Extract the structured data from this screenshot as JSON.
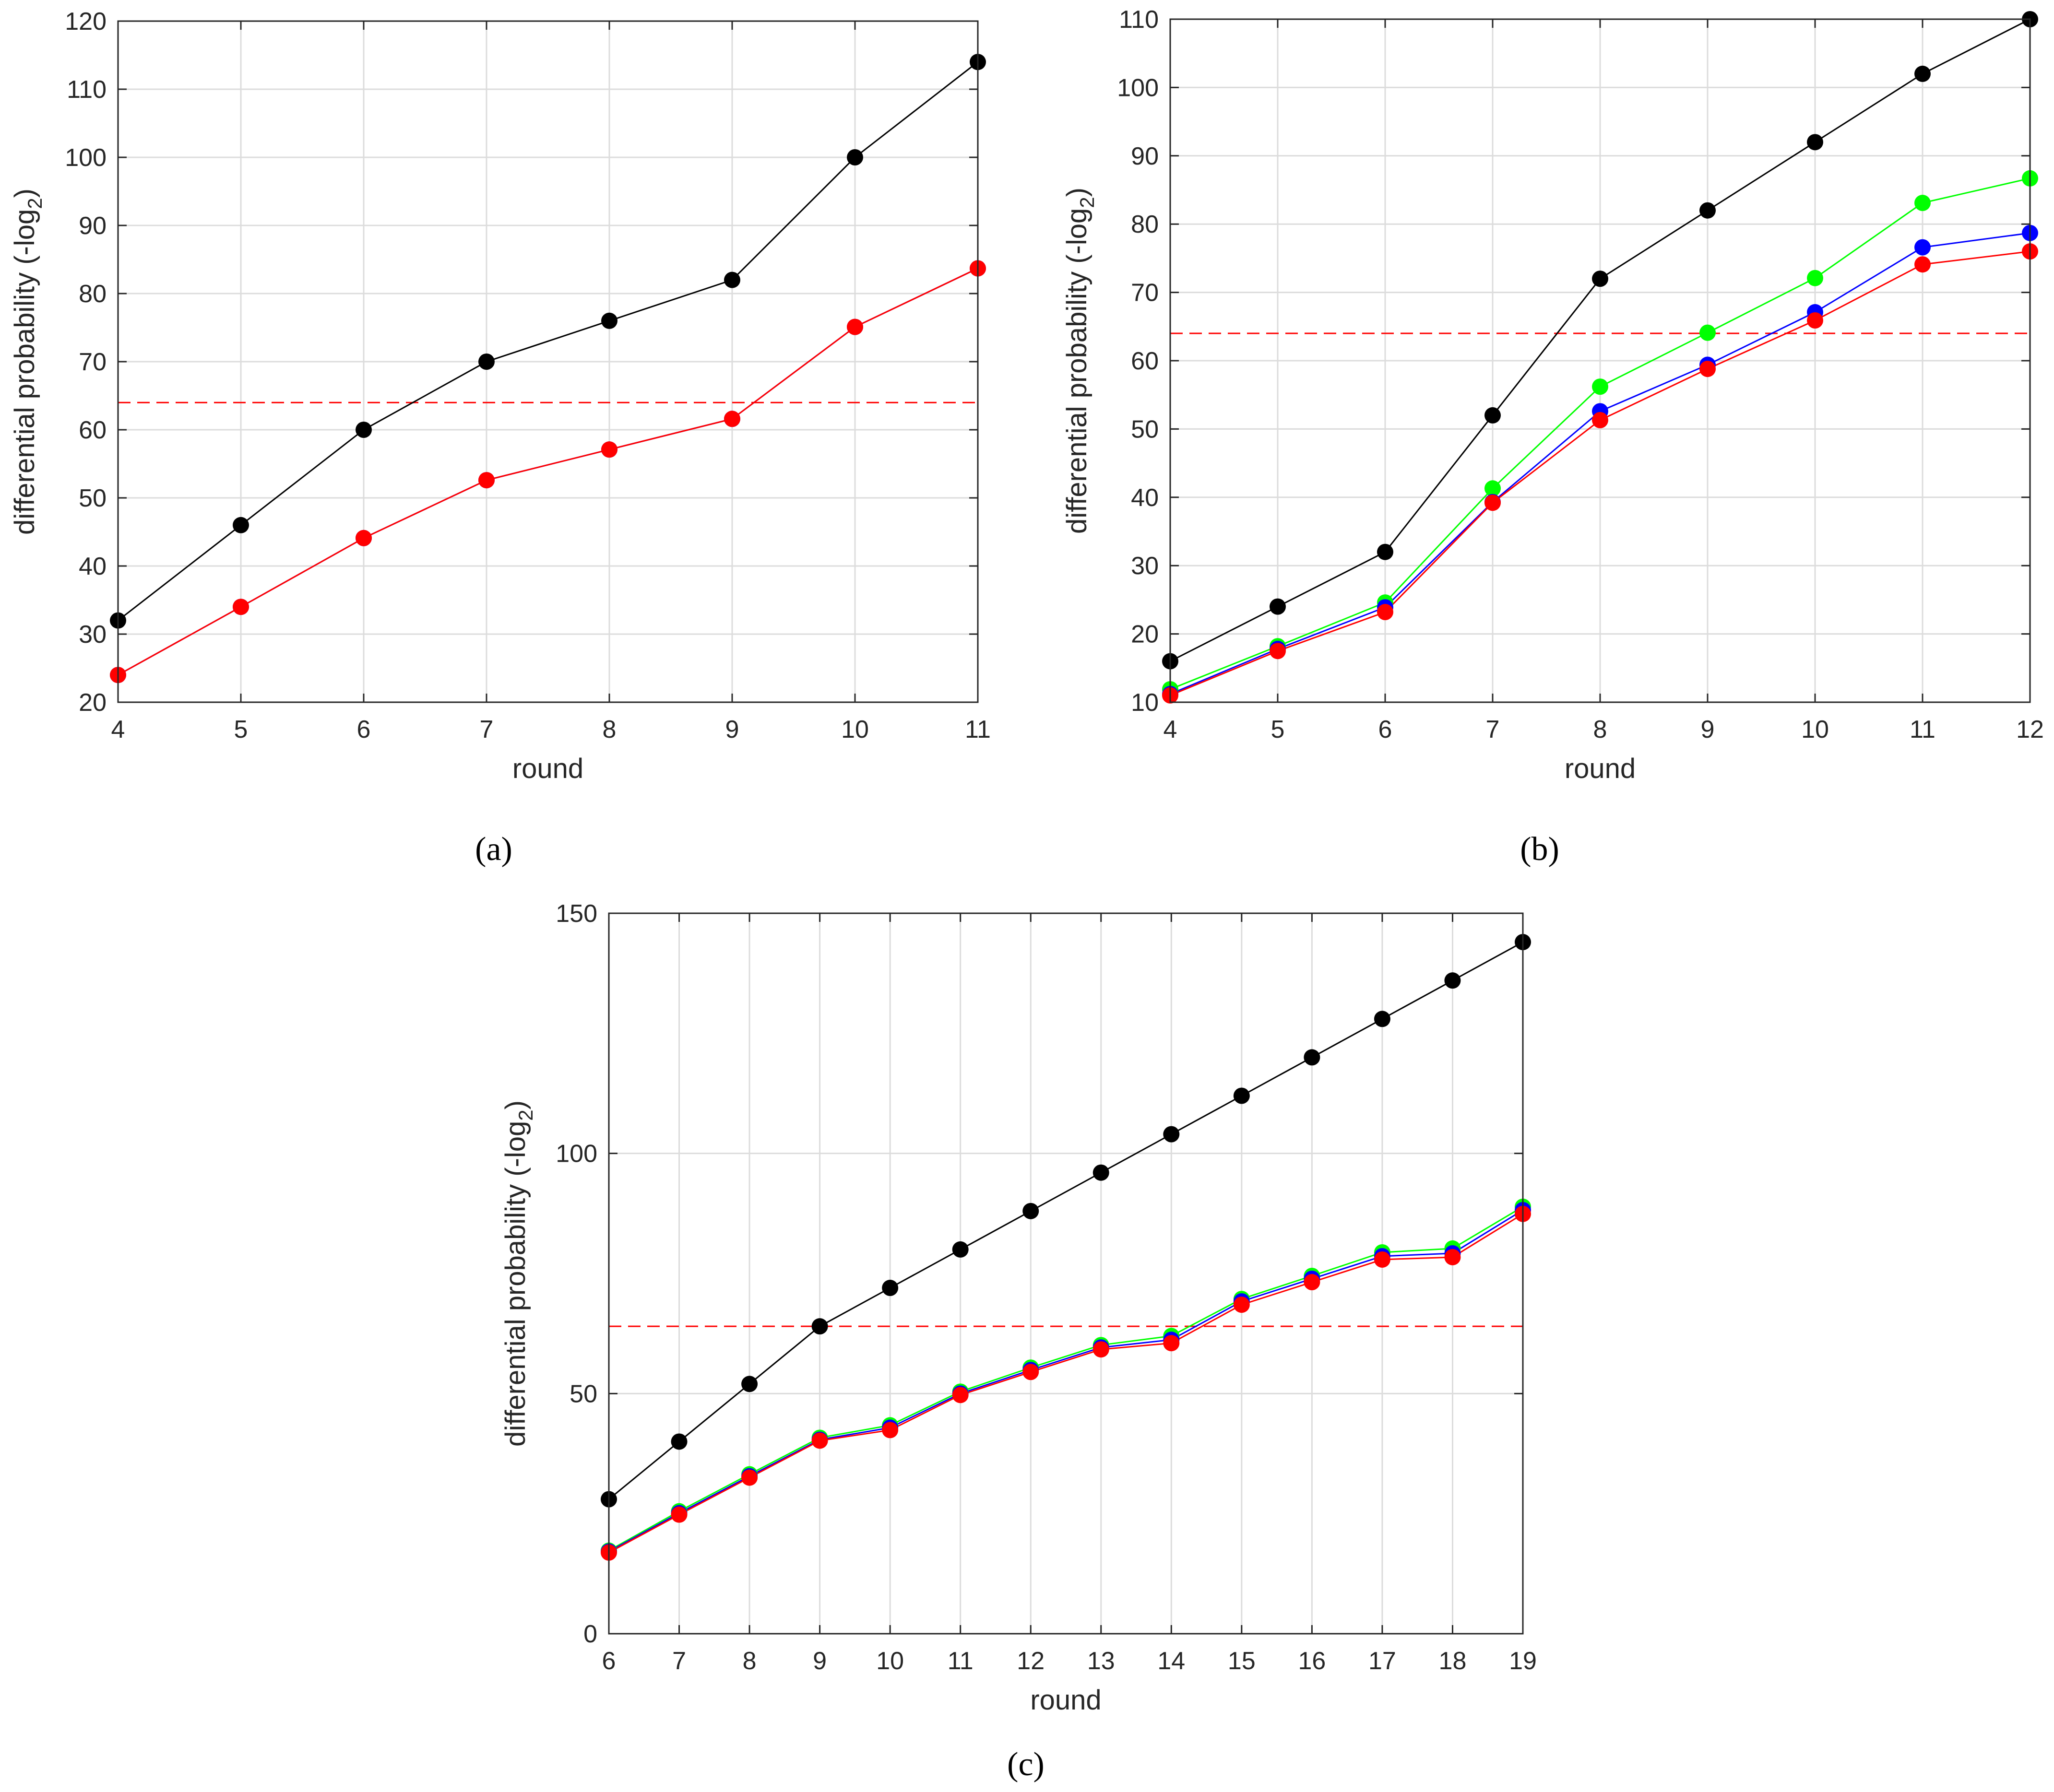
{
  "figure": {
    "panel_labels": [
      "(a)",
      "(b)",
      "(c)"
    ]
  },
  "chart_data": [
    {
      "type": "line",
      "panel": "(a)",
      "xlabel": "round",
      "ylabel": "differential probability (-log",
      "ylabel_sub": "2",
      "ylabel_end": ")",
      "xlim": [
        4,
        11
      ],
      "ylim": [
        20,
        120
      ],
      "xticks": [
        4,
        5,
        6,
        7,
        8,
        9,
        10,
        11
      ],
      "yticks": [
        20,
        30,
        40,
        50,
        60,
        70,
        80,
        90,
        100,
        110,
        120
      ],
      "grid": true,
      "x": [
        4,
        5,
        6,
        7,
        8,
        9,
        10,
        11
      ],
      "series": [
        {
          "name": "black",
          "color": "#000000",
          "values": [
            32,
            46,
            60,
            70,
            76,
            82,
            100,
            114
          ]
        },
        {
          "name": "blue",
          "color": "#0000ff",
          "values": [
            24,
            34,
            44.1,
            52.6,
            57.1,
            61.6,
            75.1,
            83.7
          ]
        },
        {
          "name": "red",
          "color": "#ff0000",
          "values": [
            24,
            34,
            44.1,
            52.6,
            57.1,
            61.6,
            75.1,
            83.7
          ]
        }
      ],
      "reference_line": {
        "y": 64,
        "color": "#ff0000",
        "style": "dashed"
      }
    },
    {
      "type": "line",
      "panel": "(b)",
      "xlabel": "round",
      "ylabel": "differential probability (-log",
      "ylabel_sub": "2",
      "ylabel_end": ")",
      "xlim": [
        4,
        12
      ],
      "ylim": [
        10,
        110
      ],
      "xticks": [
        4,
        5,
        6,
        7,
        8,
        9,
        10,
        11,
        12
      ],
      "yticks": [
        10,
        20,
        30,
        40,
        50,
        60,
        70,
        80,
        90,
        100,
        110
      ],
      "grid": true,
      "x": [
        4,
        5,
        6,
        7,
        8,
        9,
        10,
        11,
        12
      ],
      "series": [
        {
          "name": "black",
          "color": "#000000",
          "values": [
            16,
            24,
            32,
            52,
            72,
            82,
            92,
            102,
            110
          ]
        },
        {
          "name": "green",
          "color": "#00ff00",
          "values": [
            11.9,
            18.2,
            24.6,
            41.3,
            56.2,
            64.1,
            72.1,
            83.1,
            86.7
          ]
        },
        {
          "name": "blue",
          "color": "#0000ff",
          "values": [
            11.2,
            17.8,
            23.9,
            39.3,
            52.6,
            59.4,
            67.1,
            76.6,
            78.7
          ]
        },
        {
          "name": "red",
          "color": "#ff0000",
          "values": [
            11,
            17.5,
            23.2,
            39.2,
            51.3,
            58.8,
            65.9,
            74.1,
            76
          ]
        }
      ],
      "reference_line": {
        "y": 64,
        "color": "#ff0000",
        "style": "dashed"
      }
    },
    {
      "type": "line",
      "panel": "(c)",
      "xlabel": "round",
      "ylabel": "differential probability (-log",
      "ylabel_sub": "2",
      "ylabel_end": ")",
      "xlim": [
        6,
        19
      ],
      "ylim": [
        0,
        150
      ],
      "xticks": [
        6,
        7,
        8,
        9,
        10,
        11,
        12,
        13,
        14,
        15,
        16,
        17,
        18,
        19
      ],
      "yticks": [
        0,
        50,
        100,
        150
      ],
      "grid": true,
      "x": [
        6,
        7,
        8,
        9,
        10,
        11,
        12,
        13,
        14,
        15,
        16,
        17,
        18,
        19
      ],
      "series": [
        {
          "name": "black",
          "color": "#000000",
          "values": [
            28,
            40,
            52,
            64,
            72,
            80,
            88,
            96,
            104,
            112,
            120,
            128,
            136,
            144
          ]
        },
        {
          "name": "green",
          "color": "#00ff00",
          "values": [
            17.3,
            25.5,
            33.2,
            40.8,
            43.4,
            50.4,
            55.4,
            60.1,
            62,
            69.7,
            74.5,
            79.4,
            80.2,
            88.9
          ]
        },
        {
          "name": "blue",
          "color": "#0000ff",
          "values": [
            17.1,
            25.1,
            32.8,
            40.4,
            42.9,
            50,
            54.9,
            59.6,
            61.2,
            69.2,
            73.9,
            78.6,
            79.2,
            88.2
          ]
        },
        {
          "name": "red",
          "color": "#ff0000",
          "values": [
            16.9,
            24.8,
            32.5,
            40.2,
            42.4,
            49.7,
            54.5,
            59.2,
            60.5,
            68.5,
            73.2,
            77.9,
            78.4,
            87.4
          ]
        }
      ],
      "reference_line": {
        "y": 64,
        "color": "#ff0000",
        "style": "dashed"
      }
    }
  ]
}
